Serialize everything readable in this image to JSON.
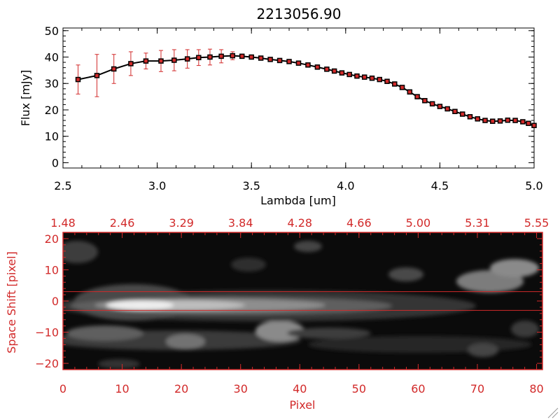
{
  "chart_data": [
    {
      "type": "line",
      "title": "2213056.90",
      "xlabel": "Lambda [um]",
      "ylabel": "Flux [mJy]",
      "xlim": [
        2.5,
        5.0
      ],
      "ylim": [
        -2,
        51
      ],
      "xticks": [
        2.5,
        3.0,
        3.5,
        4.0,
        4.5,
        5.0
      ],
      "xtick_labels": [
        "2.5",
        "3.0",
        "3.5",
        "4.0",
        "4.5",
        "5.0"
      ],
      "yticks": [
        0,
        10,
        20,
        30,
        40,
        50
      ],
      "ytick_labels": [
        "0",
        "10",
        "20",
        "30",
        "40",
        "50"
      ],
      "series": [
        {
          "name": "Flux",
          "x": [
            2.58,
            2.68,
            2.77,
            2.86,
            2.94,
            3.02,
            3.09,
            3.16,
            3.22,
            3.28,
            3.34,
            3.4,
            3.45,
            3.5,
            3.55,
            3.6,
            3.65,
            3.7,
            3.75,
            3.8,
            3.85,
            3.9,
            3.94,
            3.98,
            4.02,
            4.06,
            4.1,
            4.14,
            4.18,
            4.22,
            4.26,
            4.3,
            4.34,
            4.38,
            4.42,
            4.46,
            4.5,
            4.54,
            4.58,
            4.62,
            4.66,
            4.7,
            4.74,
            4.78,
            4.82,
            4.86,
            4.9,
            4.94,
            4.97,
            5.0
          ],
          "y": [
            31.5,
            33.0,
            35.5,
            37.5,
            38.5,
            38.5,
            38.8,
            39.3,
            39.8,
            40.0,
            40.3,
            40.5,
            40.3,
            40.0,
            39.6,
            39.1,
            38.7,
            38.3,
            37.7,
            37.0,
            36.2,
            35.4,
            34.7,
            34.0,
            33.4,
            32.8,
            32.4,
            32.0,
            31.5,
            30.8,
            29.8,
            28.5,
            26.8,
            25.0,
            23.5,
            22.3,
            21.3,
            20.4,
            19.4,
            18.4,
            17.4,
            16.6,
            16.0,
            15.7,
            15.8,
            16.1,
            16.0,
            15.5,
            14.9,
            14.1
          ],
          "err": [
            5.5,
            8.0,
            5.5,
            4.5,
            3.0,
            4.0,
            4.0,
            3.5,
            3.0,
            3.0,
            2.5,
            1.5,
            0.8,
            0.5,
            0.5,
            0.5,
            0.5,
            0.5,
            0.5,
            0.5,
            0.5,
            0.5,
            0.5,
            0.5,
            0.5,
            0.5,
            0.5,
            0.5,
            0.5,
            0.5,
            0.5,
            0.5,
            0.5,
            0.5,
            0.5,
            0.5,
            0.5,
            0.5,
            0.5,
            0.5,
            0.5,
            0.5,
            0.5,
            0.5,
            0.5,
            0.5,
            0.5,
            0.5,
            0.5,
            0.5
          ]
        }
      ],
      "colors": {
        "line": "#000000",
        "points": "#d22a2a",
        "errorbars": "#d22a2a"
      }
    },
    {
      "type": "heatmap",
      "xlabel": "Pixel",
      "ylabel": "Space Shift [pixel]",
      "xlim": [
        0,
        81
      ],
      "ylim": [
        -22,
        22
      ],
      "xticks": [
        0,
        10,
        20,
        30,
        40,
        50,
        60,
        70,
        80
      ],
      "xtick_labels": [
        "0",
        "10",
        "20",
        "30",
        "40",
        "50",
        "60",
        "70",
        "80"
      ],
      "yticks": [
        -20,
        -10,
        0,
        10,
        20
      ],
      "ytick_labels": [
        "−20",
        "−10",
        "0",
        "10",
        "20"
      ],
      "top_axis_tick_labels": [
        "1.48",
        "2.46",
        "3.29",
        "3.84",
        "4.28",
        "4.66",
        "5.00",
        "5.31",
        "5.55"
      ],
      "guide_lines_y": [
        3,
        -3
      ],
      "colormap": "grayscale",
      "colors": {
        "axes": "#d22a2a",
        "guides": "#d22a2a"
      }
    }
  ]
}
